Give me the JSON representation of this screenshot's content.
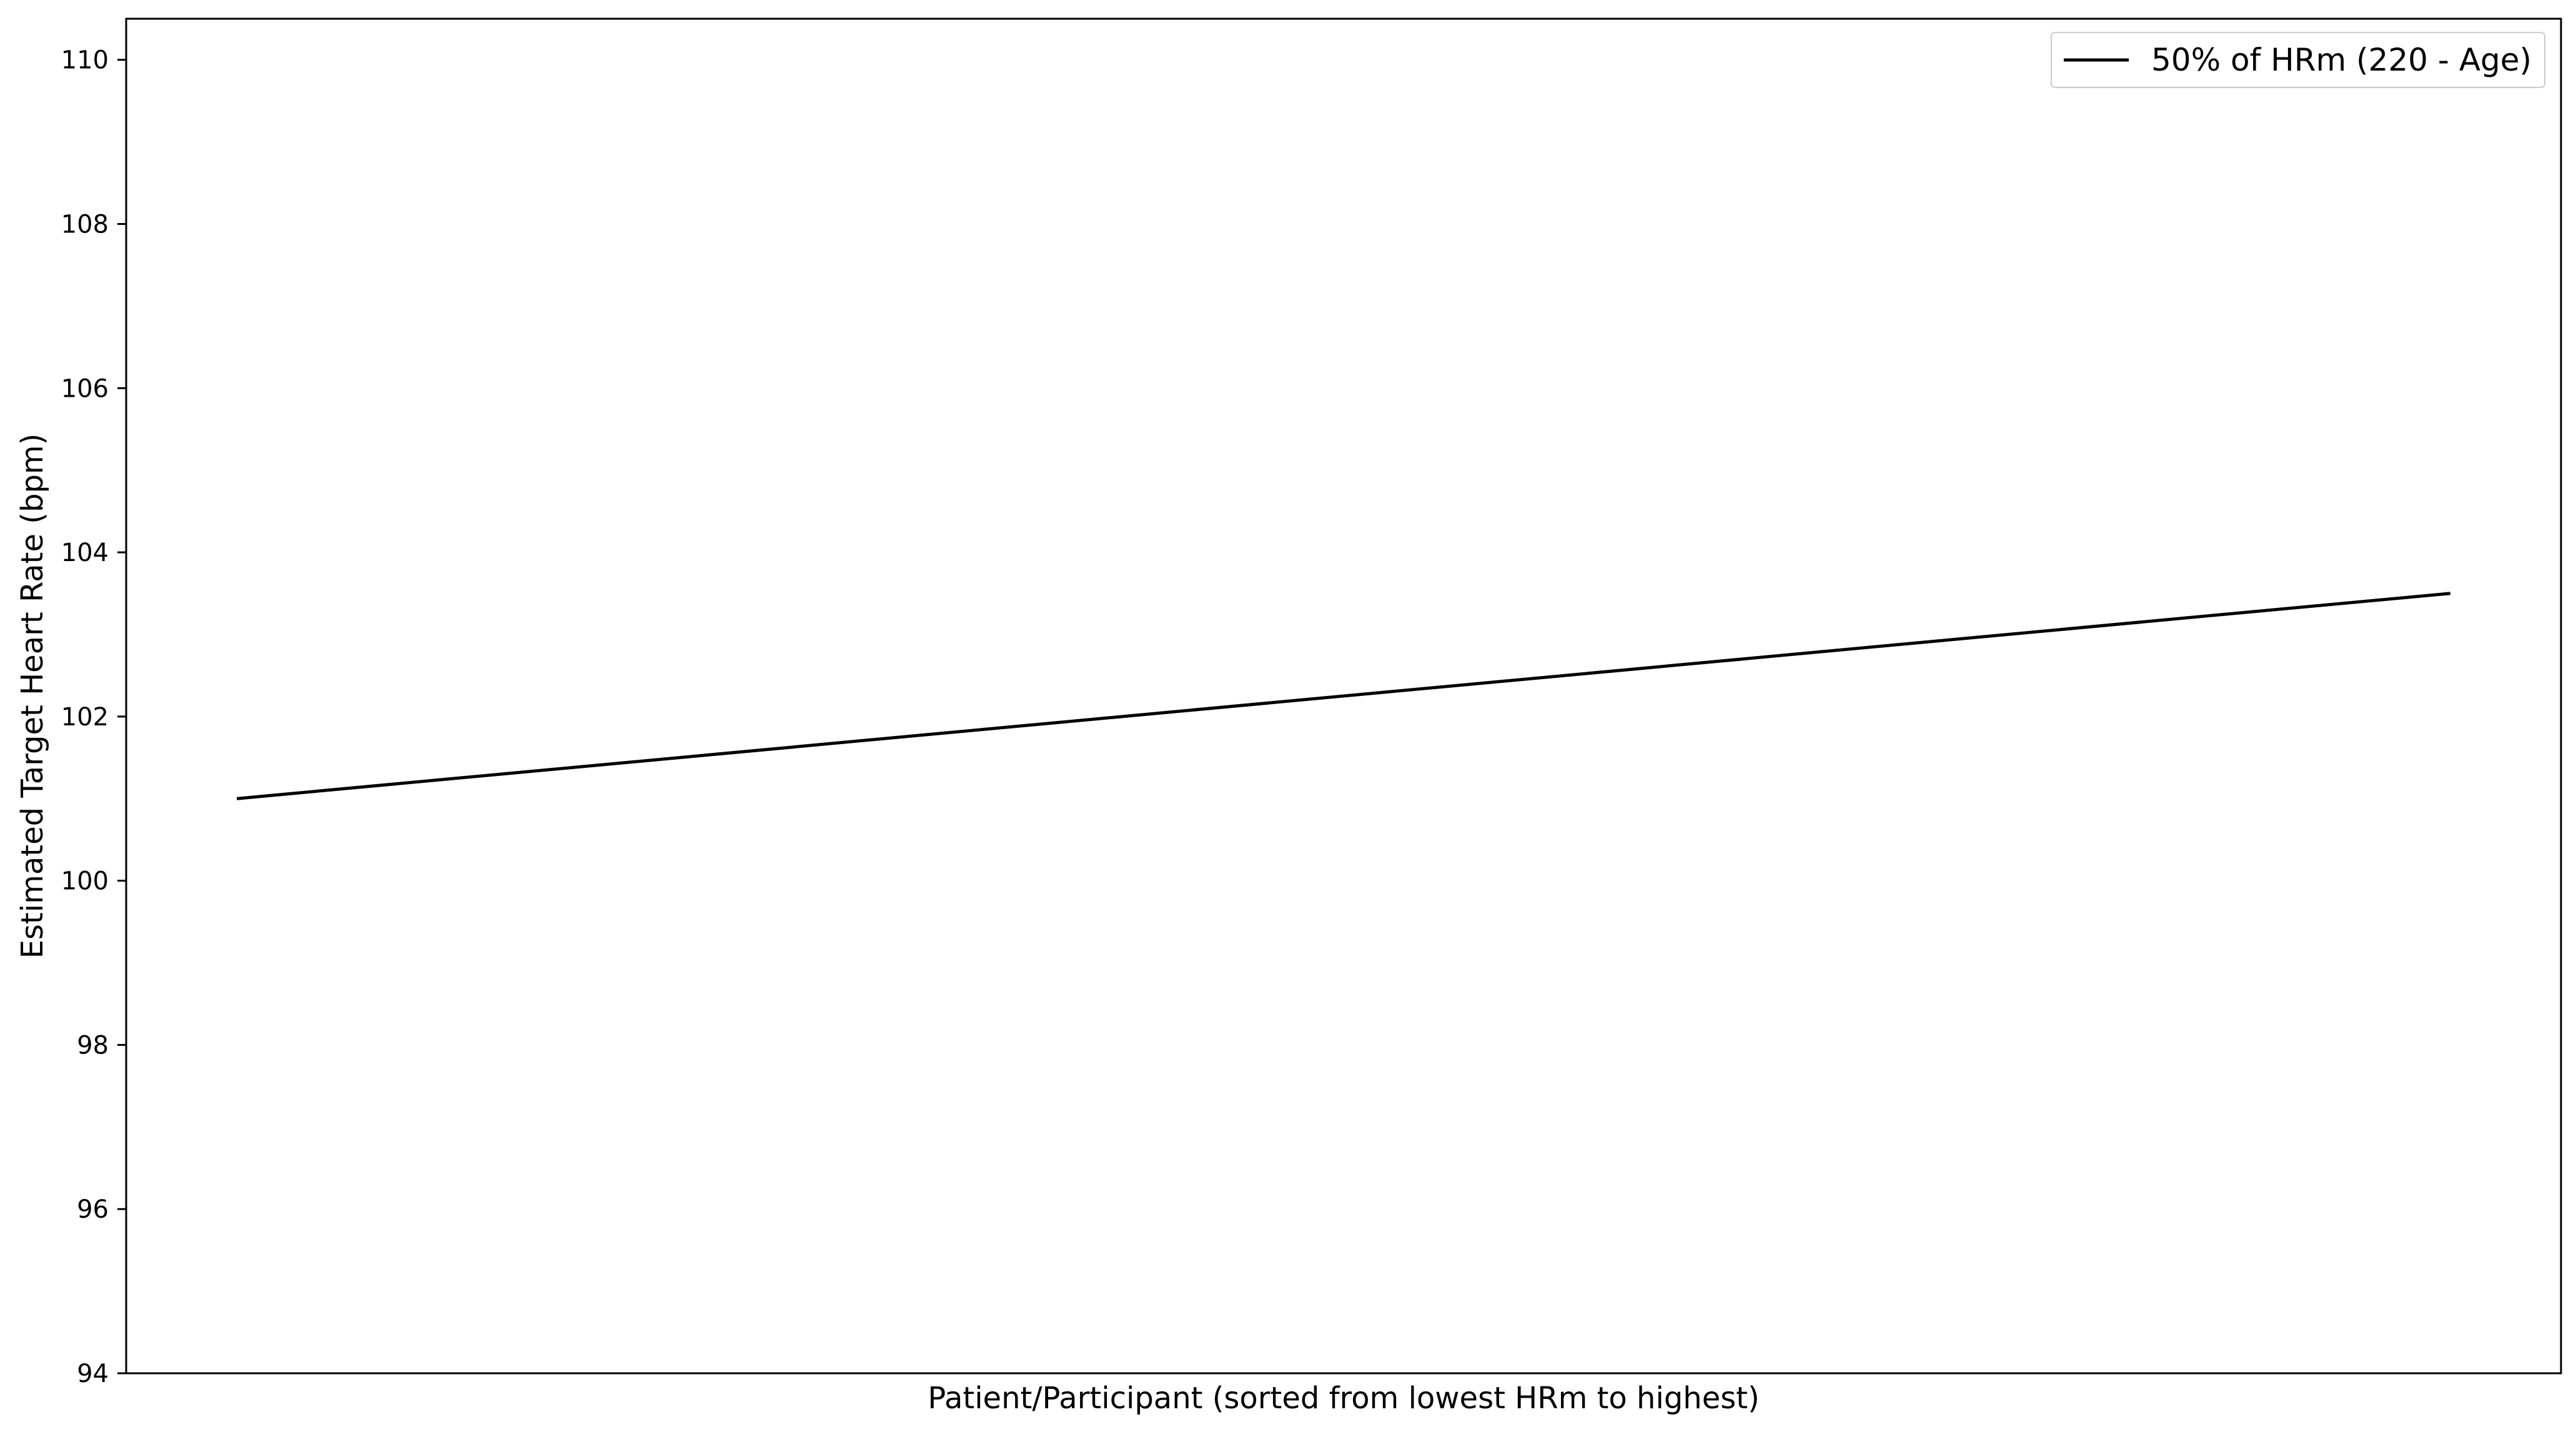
{
  "chart_data": {
    "type": "line",
    "title": "",
    "xlabel": "Patient/Participant (sorted from lowest HRm to highest)",
    "ylabel": "Estimated Target Heart Rate (bpm)",
    "ylim": [
      94,
      110.5
    ],
    "xlim": [
      -0.05,
      1.05
    ],
    "yticks": [
      94,
      96,
      98,
      100,
      102,
      104,
      106,
      108,
      110
    ],
    "xticks": [],
    "grid": false,
    "legend_position": "top-right",
    "series": [
      {
        "name": "50% of HRm (220 - Age)",
        "color": "#000000",
        "x": [
          0,
          1
        ],
        "y": [
          101.0,
          103.5
        ]
      }
    ]
  }
}
